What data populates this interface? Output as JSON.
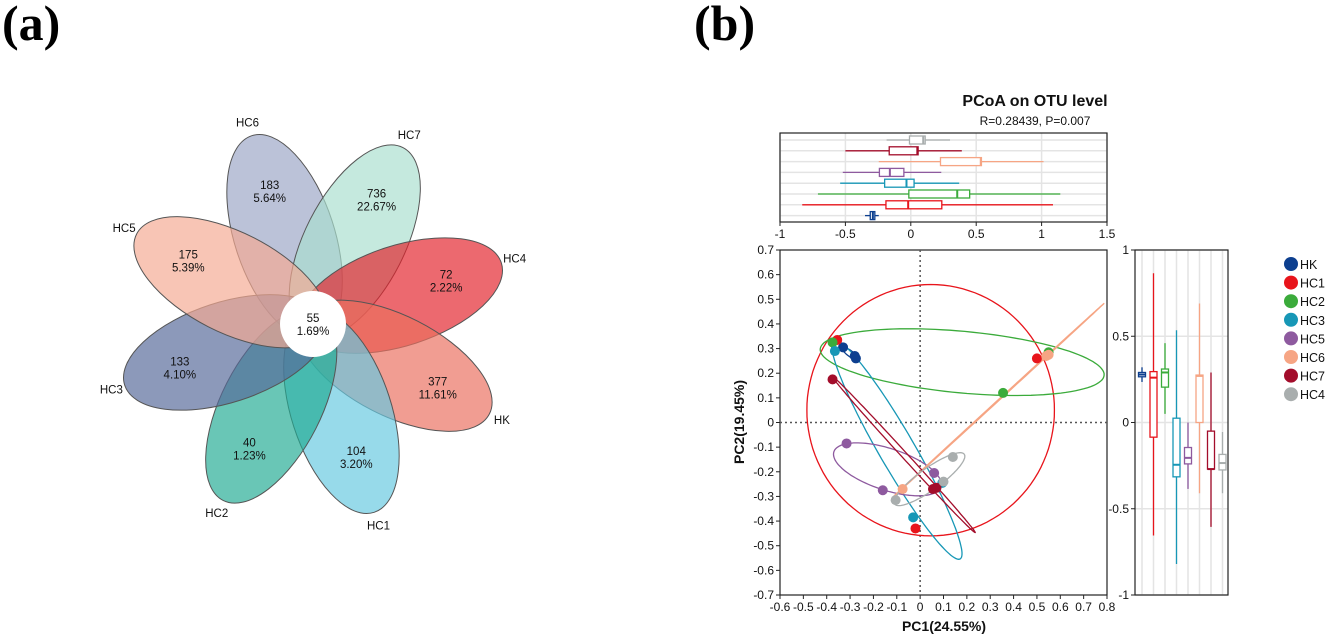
{
  "panels": {
    "a": "(a)",
    "b": "(b)"
  },
  "chart_data": [
    {
      "type": "flower",
      "center": {
        "count": "55",
        "percent": "1.69%"
      },
      "petals": [
        {
          "name": "HC6",
          "count": "183",
          "percent": "5.64%",
          "color": "#9ba5c6"
        },
        {
          "name": "HC7",
          "count": "736",
          "percent": "22.67%",
          "color": "#a9decf"
        },
        {
          "name": "HC4",
          "count": "72",
          "percent": "2.22%",
          "color": "#e3222b"
        },
        {
          "name": "HK",
          "count": "377",
          "percent": "11.61%",
          "color": "#ea6e5f"
        },
        {
          "name": "HC1",
          "count": "104",
          "percent": "3.20%",
          "color": "#66c9e0"
        },
        {
          "name": "HC2",
          "count": "40",
          "percent": "1.23%",
          "color": "#22ab93"
        },
        {
          "name": "HC3",
          "count": "133",
          "percent": "4.10%",
          "color": "#56689a"
        },
        {
          "name": "HC5",
          "count": "175",
          "percent": "5.39%",
          "color": "#f4aa92"
        }
      ]
    },
    {
      "type": "scatter",
      "title": "PCoA on OTU level",
      "subtitle": "R=0.28439, P=0.007",
      "xlabel": "PC1(24.55%)",
      "ylabel": "PC2(19.45%)",
      "xlim": [
        -0.6,
        0.8
      ],
      "ylim": [
        -0.7,
        0.7
      ],
      "xticks": [
        "-0.6",
        "-0.5",
        "-0.4",
        "-0.3",
        "-0.2",
        "-0.1",
        "0",
        "0.1",
        "0.2",
        "0.3",
        "0.4",
        "0.5",
        "0.6",
        "0.7",
        "0.8"
      ],
      "yticks": [
        "0.7",
        "0.6",
        "0.5",
        "0.4",
        "0.3",
        "0.2",
        "0.1",
        "0",
        "-0.1",
        "-0.2",
        "-0.3",
        "-0.4",
        "-0.5",
        "-0.6",
        "-0.7"
      ],
      "legend_position": "right",
      "groups": [
        {
          "name": "HK",
          "color": "#0d3f8f",
          "points": [
            [
              -0.33,
              0.305
            ],
            [
              -0.28,
              0.27
            ],
            [
              -0.275,
              0.26
            ]
          ],
          "ellipse": {
            "cx": -0.3,
            "cy": 0.28,
            "rx": 0.04,
            "ry": 0.012,
            "angle": -35
          }
        },
        {
          "name": "HC1",
          "color": "#e8141b",
          "points": [
            [
              -0.355,
              0.335
            ],
            [
              0.5,
              0.26
            ],
            [
              -0.02,
              -0.43
            ]
          ],
          "ellipse": {
            "cx": 0.045,
            "cy": 0.05,
            "rx": 0.53,
            "ry": 0.51,
            "angle": 0
          }
        },
        {
          "name": "HC2",
          "color": "#3bab3b",
          "points": [
            [
              -0.375,
              0.325
            ],
            [
              0.55,
              0.285
            ],
            [
              0.355,
              0.12
            ]
          ],
          "ellipse": {
            "cx": 0.18,
            "cy": 0.245,
            "rx": 0.61,
            "ry": 0.125,
            "angle": -5
          }
        },
        {
          "name": "HC3",
          "color": "#1797b6",
          "points": [
            [
              -0.365,
              0.29
            ],
            [
              -0.03,
              -0.385
            ],
            [
              0.095,
              -0.245
            ]
          ],
          "ellipse": {
            "cx": -0.1,
            "cy": -0.11,
            "rx": 0.52,
            "ry": 0.075,
            "angle": -58.5
          }
        },
        {
          "name": "HC5",
          "color": "#8e5a9f",
          "points": [
            [
              -0.315,
              -0.085
            ],
            [
              -0.16,
              -0.275
            ],
            [
              0.06,
              -0.205
            ]
          ],
          "ellipse": {
            "cx": -0.14,
            "cy": -0.19,
            "rx": 0.24,
            "ry": 0.085,
            "angle": -17
          }
        },
        {
          "name": "HC6",
          "color": "#f6a584",
          "points": [
            [
              0.55,
              0.275
            ],
            [
              -0.075,
              -0.27
            ],
            [
              0.54,
              0.27
            ]
          ],
          "ellipse": {
            "cx": 0.335,
            "cy": 0.09,
            "rx": 0.6,
            "ry": 0.002,
            "angle": 41
          }
        },
        {
          "name": "HC7",
          "color": "#a30d2b",
          "points": [
            [
              -0.375,
              0.175
            ],
            [
              0.055,
              -0.27
            ],
            [
              0.07,
              -0.265
            ]
          ],
          "ellipse": {
            "cx": -0.07,
            "cy": -0.13,
            "rx": 0.44,
            "ry": 0.012,
            "angle": -46
          }
        },
        {
          "name": "HC4",
          "color": "#a9aeae",
          "points": [
            [
              0.14,
              -0.14
            ],
            [
              0.1,
              -0.24
            ],
            [
              -0.105,
              -0.315
            ]
          ],
          "ellipse": {
            "cx": 0.04,
            "cy": -0.23,
            "rx": 0.18,
            "ry": 0.045,
            "angle": 34
          }
        }
      ]
    },
    {
      "type": "boxplot",
      "axis": "PC1",
      "orientation": "horizontal",
      "xlim": [
        -1,
        1.5
      ],
      "xticks": [
        "-1",
        "-0.5",
        "0",
        "0.5",
        "1",
        "1.5"
      ],
      "rows_top_to_bottom": [
        {
          "name": "HC4",
          "min": -0.185,
          "q1": -0.01,
          "median": 0.095,
          "q3": 0.11,
          "max": 0.3
        },
        {
          "name": "HC7",
          "min": -0.5,
          "q1": -0.165,
          "median": 0.05,
          "q3": 0.056,
          "max": 0.39
        },
        {
          "name": "HC6",
          "min": -0.245,
          "q1": 0.227,
          "median": 0.535,
          "q3": 0.54,
          "max": 1.015
        },
        {
          "name": "HC5",
          "min": -0.52,
          "q1": -0.24,
          "median": -0.16,
          "q3": -0.053,
          "max": 0.233
        },
        {
          "name": "HC3",
          "min": -0.54,
          "q1": -0.2,
          "median": -0.033,
          "q3": 0.025,
          "max": 0.37
        },
        {
          "name": "HC2",
          "min": -0.71,
          "q1": -0.015,
          "median": 0.355,
          "q3": 0.45,
          "max": 1.143
        },
        {
          "name": "HC1",
          "min": -0.83,
          "q1": -0.19,
          "median": -0.02,
          "q3": 0.237,
          "max": 1.087
        },
        {
          "name": "HK",
          "min": -0.35,
          "q1": -0.31,
          "median": -0.29,
          "q3": -0.275,
          "max": -0.245
        }
      ]
    },
    {
      "type": "boxplot",
      "axis": "PC2",
      "orientation": "vertical",
      "ylim": [
        -1,
        1
      ],
      "yticks": [
        "1",
        "0.5",
        "0",
        "-0.5",
        "-1"
      ],
      "cols_left_to_right": [
        {
          "name": "HK",
          "min": 0.235,
          "q1": 0.265,
          "median": 0.278,
          "q3": 0.29,
          "max": 0.32
        },
        {
          "name": "HC1",
          "min": -0.655,
          "q1": -0.085,
          "median": 0.26,
          "q3": 0.295,
          "max": 0.865
        },
        {
          "name": "HC2",
          "min": 0.05,
          "q1": 0.205,
          "median": 0.29,
          "q3": 0.31,
          "max": 0.46
        },
        {
          "name": "HC3",
          "min": -0.82,
          "q1": -0.315,
          "median": -0.245,
          "q3": 0.025,
          "max": 0.535
        },
        {
          "name": "HC5",
          "min": -0.385,
          "q1": -0.24,
          "median": -0.205,
          "q3": -0.145,
          "max": 0
        },
        {
          "name": "HC6",
          "min": -0.41,
          "q1": 0,
          "median": 0.27,
          "q3": 0.275,
          "max": 0.69
        },
        {
          "name": "HC7",
          "min": -0.605,
          "q1": -0.27,
          "median": -0.27,
          "q3": -0.05,
          "max": 0.29
        },
        {
          "name": "HC4",
          "min": -0.41,
          "q1": -0.275,
          "median": -0.235,
          "q3": -0.185,
          "max": -0.055
        }
      ]
    }
  ]
}
